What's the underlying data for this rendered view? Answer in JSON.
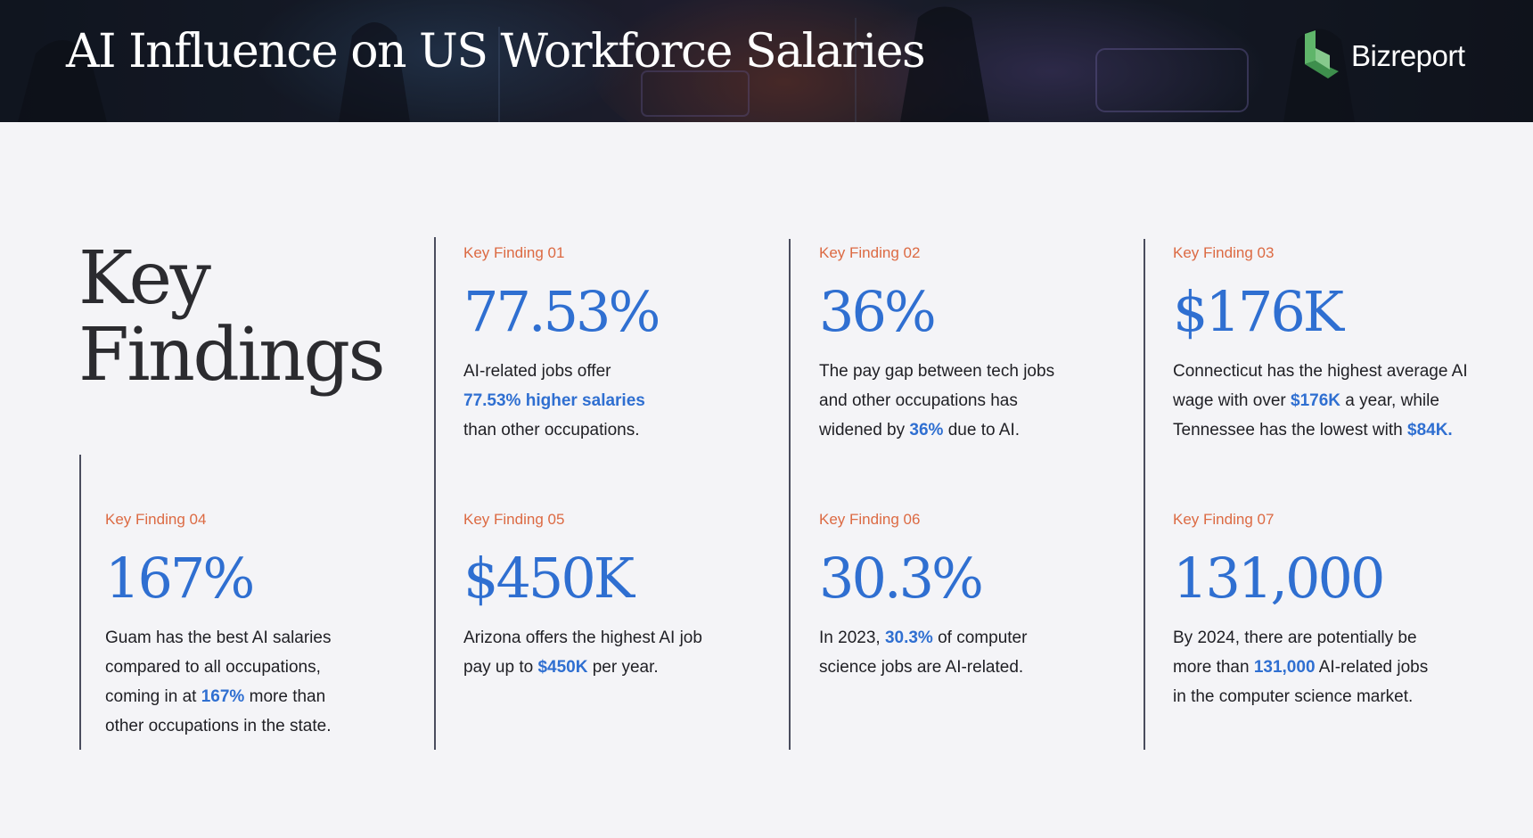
{
  "header": {
    "title": "AI Influence on US Workforce Salaries",
    "brand": "Bizreport"
  },
  "section": {
    "heading_line1": "Key",
    "heading_line2": "Findings"
  },
  "findings": [
    {
      "label": "Key Finding 01",
      "value": "77.53%",
      "desc": [
        {
          "t": "AI-related jobs offer "
        },
        {
          "t": "77.53% higher salaries",
          "hl": true
        },
        {
          "t": " than other occupations."
        }
      ]
    },
    {
      "label": "Key Finding 02",
      "value": "36%",
      "desc": [
        {
          "t": "The pay gap between tech jobs and other occupations has widened by "
        },
        {
          "t": "36%",
          "hl": true
        },
        {
          "t": " due to AI."
        }
      ]
    },
    {
      "label": "Key Finding 03",
      "value": "$176K",
      "desc": [
        {
          "t": "Connecticut has the highest average AI wage with over "
        },
        {
          "t": "$176K",
          "hl": true
        },
        {
          "t": " a year, while Tennessee has the lowest with "
        },
        {
          "t": "$84K.",
          "hl": true
        }
      ]
    },
    {
      "label": "Key Finding 04",
      "value": "167%",
      "desc": [
        {
          "t": "Guam has the best AI salaries compared to all occupations, coming in at "
        },
        {
          "t": "167%",
          "hl": true
        },
        {
          "t": " more than other occupations in the state."
        }
      ]
    },
    {
      "label": "Key Finding 05",
      "value": "$450K",
      "desc": [
        {
          "t": "Arizona offers the highest AI job pay up to "
        },
        {
          "t": "$450K",
          "hl": true
        },
        {
          "t": " per year."
        }
      ]
    },
    {
      "label": "Key Finding 06",
      "value": "30.3%",
      "desc": [
        {
          "t": "In 2023, "
        },
        {
          "t": "30.3%",
          "hl": true
        },
        {
          "t": " of computer science jobs are AI-related."
        }
      ]
    },
    {
      "label": "Key Finding 07",
      "value": "131,000",
      "desc": [
        {
          "t": "By 2024, there are potentially be more than "
        },
        {
          "t": "131,000",
          "hl": true
        },
        {
          "t": " AI-related jobs in the computer science market."
        }
      ]
    }
  ]
}
